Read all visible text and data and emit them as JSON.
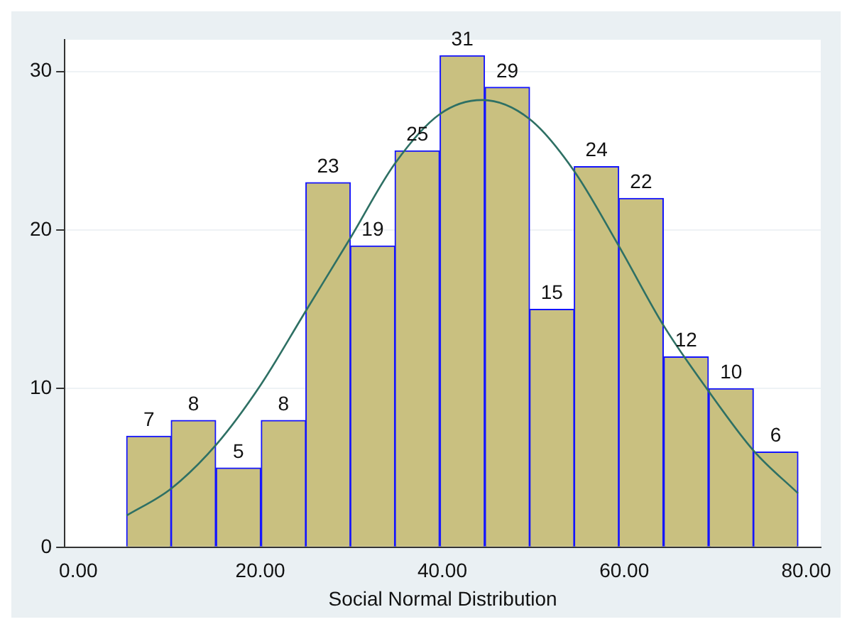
{
  "chart_data": {
    "type": "histogram",
    "xlabel": "Social Normal Distribution",
    "bins": [
      5.3,
      10.2,
      15.1,
      20.1,
      25.0,
      29.9,
      34.8,
      39.7,
      44.7,
      49.6,
      54.5,
      59.4,
      64.3,
      69.3,
      74.2,
      79.1
    ],
    "values": [
      7,
      8,
      5,
      8,
      23,
      19,
      25,
      31,
      29,
      15,
      24,
      22,
      12,
      10,
      6
    ],
    "color": "#c9c080",
    "value_labels": [
      "7",
      "8",
      "5",
      "8",
      "23",
      "19",
      "25",
      "31",
      "29",
      "15",
      "24",
      "22",
      "12",
      "10",
      "6"
    ],
    "series": [
      {
        "type": "line",
        "color": "#2e7064",
        "x": [
          5.3,
          10.2,
          15.2,
          20.0,
          25.0,
          29.9,
          34.8,
          39.7,
          44.4,
          49.6,
          54.4,
          59.4,
          64.3,
          69.2,
          74.2,
          79.1
        ],
        "values": [
          2.0,
          3.7,
          6.5,
          10.2,
          14.9,
          19.5,
          24.2,
          27.3,
          28.2,
          27.0,
          23.8,
          19.0,
          14.0,
          9.9,
          6.1,
          3.4
        ]
      }
    ],
    "xlim": [
      -1.5,
      81.6
    ],
    "xticks": [
      {
        "value": 0,
        "label": "0.00"
      },
      {
        "value": 20,
        "label": "20.00"
      },
      {
        "value": 40,
        "label": "40.00"
      },
      {
        "value": 60,
        "label": "60.00"
      },
      {
        "value": 80,
        "label": "80.00"
      }
    ],
    "ylim": [
      0,
      32
    ],
    "yticks": [
      0,
      10,
      20,
      30
    ],
    "grid": "y",
    "legend": false,
    "marker": "none"
  }
}
